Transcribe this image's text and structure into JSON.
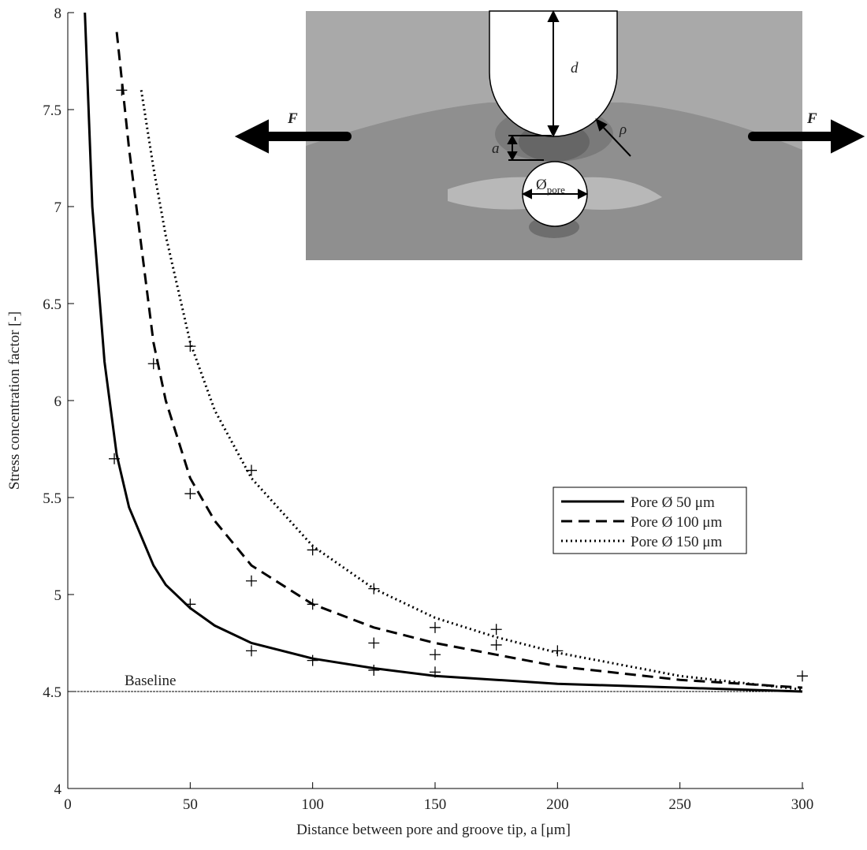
{
  "chart_data": {
    "type": "line",
    "xlabel": "Distance between pore and groove tip, a [μm]",
    "ylabel": "Stress concentration factor [-]",
    "x": [
      7,
      10,
      15,
      20,
      25,
      30,
      35,
      40,
      50,
      60,
      75,
      100,
      125,
      150,
      175,
      200,
      250,
      300
    ],
    "series": [
      {
        "name": "Pore Ø 50 μm",
        "color": "#000000",
        "dash": "solid",
        "values": [
          8,
          7.0,
          6.2,
          5.72,
          5.45,
          5.3,
          5.15,
          5.05,
          4.93,
          4.84,
          4.75,
          4.67,
          4.62,
          4.58,
          4.56,
          4.54,
          4.52,
          4.5
        ]
      },
      {
        "name": "Pore Ø 100 μm",
        "color": "#000000",
        "dash": "dashed",
        "values": [
          null,
          null,
          null,
          7.9,
          7.3,
          6.8,
          6.3,
          6.0,
          5.6,
          5.38,
          5.15,
          4.95,
          4.83,
          4.75,
          4.69,
          4.63,
          4.56,
          4.52
        ]
      },
      {
        "name": "Pore Ø 150 μm",
        "color": "#000000",
        "dash": "dotted",
        "values": [
          null,
          null,
          null,
          null,
          null,
          7.6,
          7.2,
          6.85,
          6.3,
          5.95,
          5.6,
          5.25,
          5.03,
          4.88,
          4.78,
          4.7,
          4.58,
          4.51
        ]
      }
    ],
    "markers": {
      "x": [
        22,
        35,
        50,
        19,
        50,
        75,
        100,
        75,
        50,
        125,
        100,
        75,
        100,
        150,
        175,
        125,
        150,
        175,
        200,
        125,
        150,
        300
      ],
      "y": [
        7.6,
        6.19,
        6.28,
        5.7,
        5.52,
        5.64,
        5.23,
        5.07,
        4.95,
        5.03,
        4.95,
        4.71,
        4.66,
        4.83,
        4.82,
        4.75,
        4.69,
        4.74,
        4.71,
        4.61,
        4.6,
        4.58
      ]
    },
    "baseline": {
      "label": "Baseline",
      "value": 4.5
    },
    "xlim": [
      0,
      300
    ],
    "xticks": [
      0,
      50,
      100,
      150,
      200,
      250,
      300
    ],
    "ylim": [
      4,
      8
    ],
    "yticks": [
      4,
      4.5,
      5,
      5.5,
      6,
      6.5,
      7,
      7.5,
      8
    ],
    "legend": "right",
    "inset": {
      "d": "d",
      "a": "a",
      "rho": "ρ",
      "force_left": "F",
      "force_right": "F",
      "pore_symbol": "Ø",
      "pore_sub": "pore"
    }
  }
}
